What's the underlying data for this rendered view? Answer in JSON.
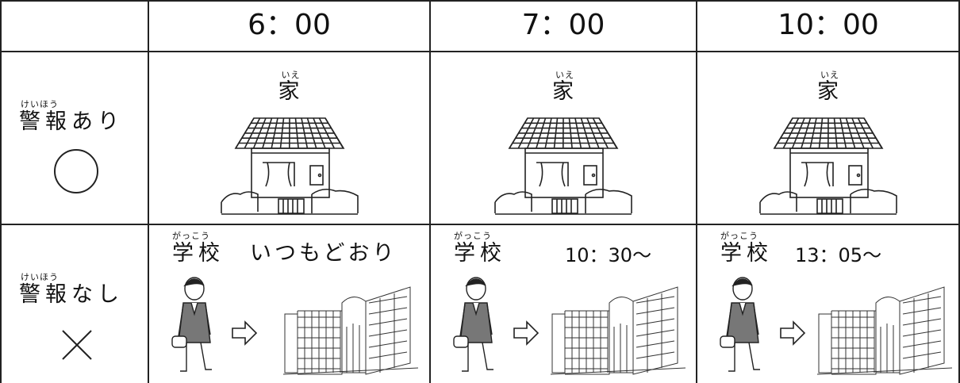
{
  "table": {
    "header": [
      "6：00",
      "7：00",
      "10：00"
    ],
    "rows": [
      {
        "ruby": "けいほう",
        "label": "警報あり",
        "cells": [
          {
            "ruby": "いえ",
            "text": "家"
          },
          {
            "ruby": "いえ",
            "text": "家"
          },
          {
            "ruby": "いえ",
            "text": "家"
          }
        ]
      },
      {
        "ruby": "けいほう",
        "label": "警報なし",
        "cells": [
          {
            "ruby": "がっこう",
            "text": "学校",
            "note": "いつもどおり"
          },
          {
            "ruby": "がっこう",
            "text": "学校",
            "note": "10：30～"
          },
          {
            "ruby": "がっこう",
            "text": "学校",
            "note": "13：05～"
          }
        ]
      }
    ]
  }
}
